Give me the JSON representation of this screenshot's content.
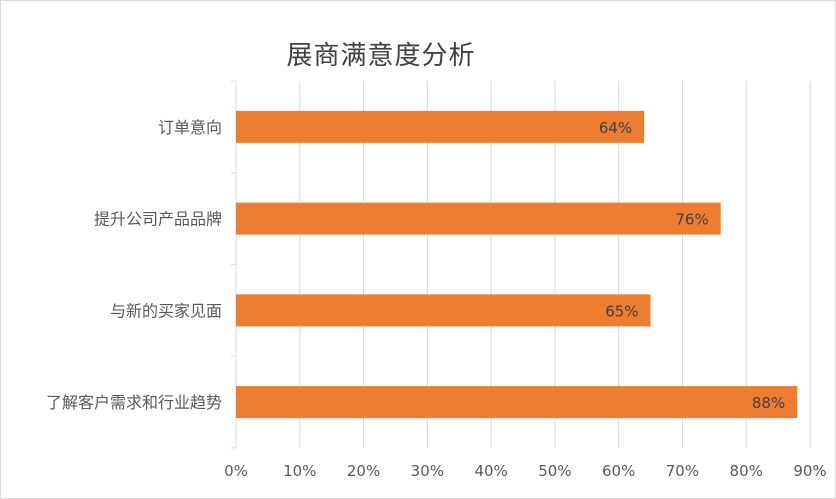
{
  "chart_data": {
    "type": "bar",
    "orientation": "horizontal",
    "title": "展商满意度分析",
    "categories": [
      "订单意向",
      "提升公司产品品牌",
      "与新的买家见面",
      "了解客户需求和行业趋势"
    ],
    "values": [
      0.64,
      0.76,
      0.65,
      0.88
    ],
    "data_labels": [
      "64%",
      "76%",
      "65%",
      "88%"
    ],
    "xlim": [
      0,
      0.9
    ],
    "x_ticks": [
      0,
      0.1,
      0.2,
      0.3,
      0.4,
      0.5,
      0.6,
      0.7,
      0.8,
      0.9
    ],
    "x_tick_labels": [
      "0%",
      "10%",
      "20%",
      "30%",
      "40%",
      "50%",
      "60%",
      "70%",
      "80%",
      "90%"
    ],
    "grid": true,
    "bar_color": "#ED7D31",
    "legend": "none"
  }
}
